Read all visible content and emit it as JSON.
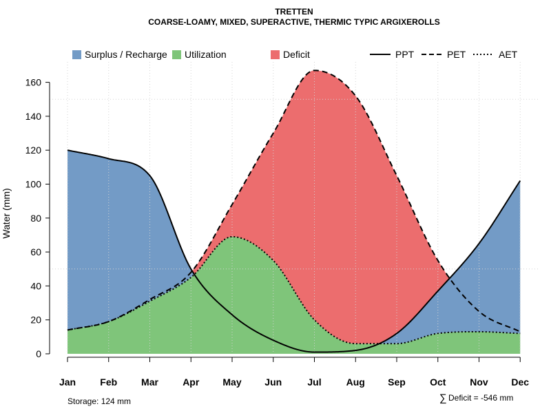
{
  "chart_data": {
    "type": "area",
    "title": "TRETTEN",
    "subtitle": "COARSE-LOAMY, MIXED, SUPERACTIVE, THERMIC TYPIC ARGIXEROLLS",
    "xlabel": "",
    "ylabel": "Water (mm)",
    "ylim": [
      0,
      172
    ],
    "yticks": [
      0,
      20,
      40,
      60,
      80,
      100,
      120,
      140,
      160
    ],
    "categories": [
      "Jan",
      "Feb",
      "Mar",
      "Apr",
      "May",
      "Jun",
      "Jul",
      "Aug",
      "Sep",
      "Oct",
      "Nov",
      "Dec"
    ],
    "series": [
      {
        "name": "PPT",
        "style": "solid",
        "values": [
          120,
          115,
          105,
          50,
          23,
          8,
          1,
          2,
          12,
          37,
          65,
          102
        ]
      },
      {
        "name": "PET",
        "style": "dashed",
        "values": [
          14,
          19,
          32,
          48,
          88,
          130,
          167,
          152,
          105,
          55,
          25,
          13
        ]
      },
      {
        "name": "AET",
        "style": "dotted",
        "values": [
          14,
          19,
          31,
          45,
          69,
          55,
          20,
          6,
          6,
          12,
          13,
          12
        ]
      }
    ],
    "areas": [
      {
        "name": "Surplus / Recharge",
        "color": "#739bc6"
      },
      {
        "name": "Utilization",
        "color": "#7fc57a"
      },
      {
        "name": "Deficit",
        "color": "#ec6d6e"
      }
    ],
    "legend_position": "top",
    "grid": true,
    "storage_text": "Storage: 124 mm",
    "deficit_text": "Deficit = -546 mm",
    "deficit_symbol": "∑"
  }
}
